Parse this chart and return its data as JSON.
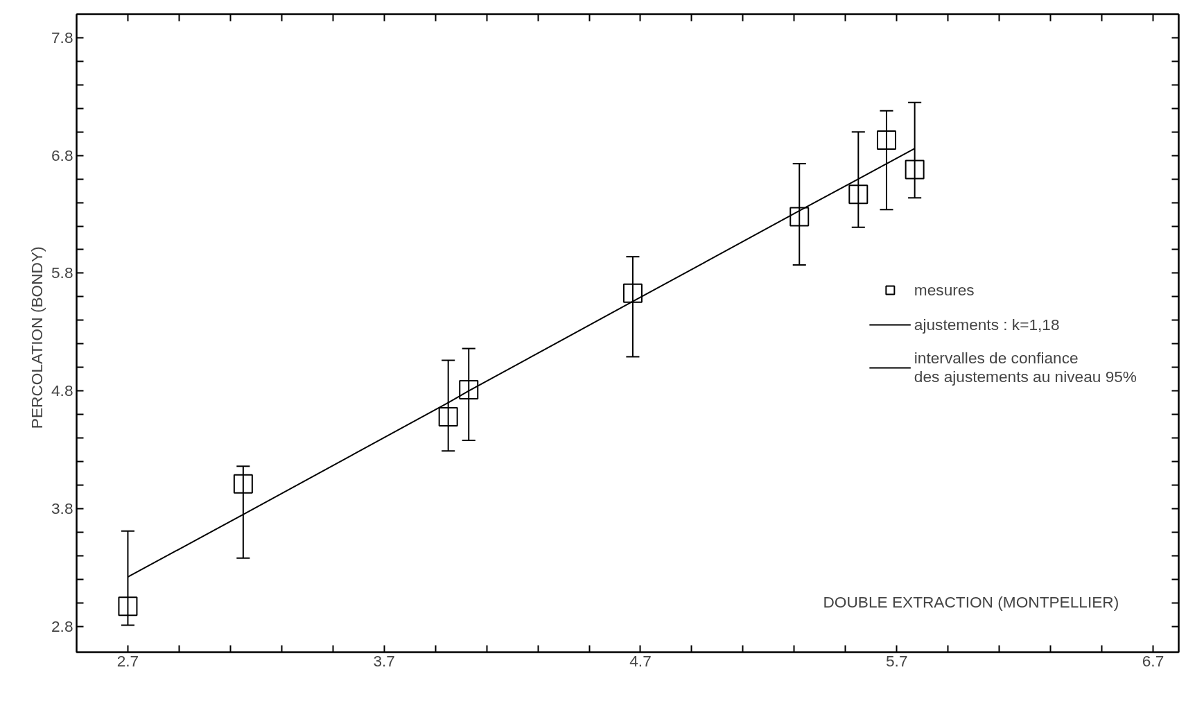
{
  "chart_data": {
    "type": "scatter",
    "xlabel": "DOUBLE  EXTRACTION (MONTPELLIER)",
    "ylabel": "PERCOLATION   (BONDY)",
    "series": [
      {
        "name": "mesures",
        "color": "#000000",
        "marker": "square",
        "x": [
          2.7,
          3.15,
          3.95,
          4.03,
          4.67,
          5.32,
          5.55,
          5.66,
          5.77
        ],
        "values": [
          2.97,
          4.01,
          4.58,
          4.81,
          5.63,
          6.28,
          6.47,
          6.93,
          6.68
        ]
      },
      {
        "name": "ajustements : k=1,18",
        "type": "line",
        "color": "#000000",
        "line_style": "solid",
        "x": [
          2.7,
          3.15,
          3.95,
          4.03,
          4.67,
          5.32,
          5.55,
          5.66,
          5.77
        ],
        "values": [
          3.22,
          3.75,
          4.7,
          4.8,
          5.56,
          6.33,
          6.6,
          6.73,
          6.86
        ],
        "errors": [
          [
            2.81,
            3.61
          ],
          [
            3.38,
            4.16
          ],
          [
            4.29,
            5.06
          ],
          [
            4.38,
            5.16
          ],
          [
            5.09,
            5.94
          ],
          [
            5.87,
            6.73
          ],
          [
            6.19,
            7.0
          ],
          [
            6.34,
            7.18
          ],
          [
            6.44,
            7.25
          ]
        ]
      }
    ],
    "annotations": [
      "intervalles de confiance\ndes ajustements au niveau 95%"
    ],
    "legend": "right",
    "grid": false,
    "xlim": [
      2.5,
      6.8
    ],
    "ylim": [
      2.58,
      8.0
    ],
    "xticks": [
      2.7,
      {
        "value": 2.9,
        "label": null
      },
      {
        "value": 3.1,
        "label": null
      },
      {
        "value": 3.3,
        "label": null
      },
      {
        "value": 3.5,
        "label": null
      },
      3.7,
      {
        "value": 3.9,
        "label": null
      },
      {
        "value": 4.1,
        "label": null
      },
      {
        "value": 4.3,
        "label": null
      },
      {
        "value": 4.5,
        "label": null
      },
      4.7,
      {
        "value": 4.9,
        "label": null
      },
      {
        "value": 5.1,
        "label": null
      },
      {
        "value": 5.3,
        "label": null
      },
      {
        "value": 5.5,
        "label": null
      },
      5.7,
      {
        "value": 5.9,
        "label": null
      },
      {
        "value": 6.1,
        "label": null
      },
      {
        "value": 6.3,
        "label": null
      },
      {
        "value": 6.5,
        "label": null
      },
      6.7
    ],
    "yticks": [
      2.8,
      {
        "value": 3.0,
        "label": null
      },
      {
        "value": 3.2,
        "label": null
      },
      {
        "value": 3.4,
        "label": null
      },
      {
        "value": 3.6,
        "label": null
      },
      3.8,
      {
        "value": 4.0,
        "label": null
      },
      {
        "value": 4.2,
        "label": null
      },
      {
        "value": 4.4,
        "label": null
      },
      {
        "value": 4.6,
        "label": null
      },
      4.8,
      {
        "value": 5.0,
        "label": null
      },
      {
        "value": 5.2,
        "label": null
      },
      {
        "value": 5.4,
        "label": null
      },
      {
        "value": 5.6,
        "label": null
      },
      5.8,
      {
        "value": 6.0,
        "label": null
      },
      {
        "value": 6.2,
        "label": null
      },
      {
        "value": 6.4,
        "label": null
      },
      {
        "value": 6.6,
        "label": null
      },
      6.8,
      {
        "value": 7.0,
        "label": null
      },
      {
        "value": 7.2,
        "label": null
      },
      {
        "value": 7.4,
        "label": null
      },
      {
        "value": 7.6,
        "label": null
      },
      7.8
    ]
  }
}
